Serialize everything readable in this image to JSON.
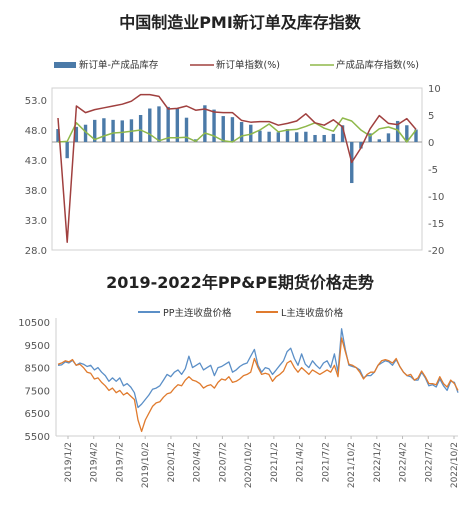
{
  "chart_data": [
    {
      "type": "bar+line",
      "title": "中国制造业PMI新订单及库存指数",
      "legend": [
        "新订单-产成品库存",
        "新订单指数(%)",
        "产成品库存指数(%)"
      ],
      "legend_position": "top",
      "left_ticks": [
        "53.0",
        "48.0",
        "43.0",
        "38.0",
        "33.0",
        "28.0"
      ],
      "right_ticks": [
        "10",
        "5",
        "0",
        "-5",
        "-10",
        "-15",
        "-20"
      ],
      "ylim_left": [
        28,
        55
      ],
      "ylim_right": [
        -20,
        10
      ],
      "colors": {
        "bar": "#4b7aa8",
        "new_orders": "#a0403f",
        "inventory": "#8fb84a"
      },
      "series": [
        {
          "name": "新订单-产成品库存",
          "axis": "right",
          "kind": "bar",
          "values": [
            2.4,
            -3.0,
            2.8,
            3.2,
            4.1,
            4.4,
            4.1,
            4.0,
            4.2,
            5.0,
            6.2,
            6.6,
            6.5,
            6.2,
            4.5,
            0.5,
            6.8,
            6.0,
            4.8,
            4.6,
            3.7,
            3.2,
            2.1,
            1.9,
            1.8,
            2.4,
            1.8,
            1.9,
            1.3,
            1.3,
            1.5,
            3.1,
            -7.6,
            -1.2,
            1.6,
            0.5,
            1.6,
            3.9,
            3.1,
            2.3
          ]
        },
        {
          "name": "新订单指数(%)",
          "axis": "left",
          "kind": "line",
          "values": [
            50.0,
            29.3,
            52.0,
            50.9,
            51.4,
            51.7,
            52.0,
            52.3,
            52.8,
            53.9,
            53.9,
            53.6,
            51.5,
            51.6,
            52.0,
            51.3,
            51.5,
            51.0,
            50.9,
            50.9,
            49.6,
            49.3,
            49.4,
            49.4,
            48.8,
            49.1,
            49.5,
            50.7,
            49.2,
            48.8,
            49.7,
            48.5,
            42.6,
            45.0,
            48.2,
            50.4,
            49.1,
            48.9,
            49.9,
            48.1
          ]
        },
        {
          "name": "产成品库存指数(%)",
          "axis": "left",
          "kind": "line",
          "values": [
            46.0,
            46.1,
            49.2,
            47.7,
            46.4,
            47.0,
            47.5,
            47.6,
            47.8,
            48.0,
            47.3,
            46.2,
            46.7,
            46.7,
            46.8,
            46.1,
            47.5,
            47.0,
            46.2,
            46.0,
            47.0,
            47.3,
            48.0,
            49.0,
            47.7,
            48.0,
            48.1,
            48.6,
            49.2,
            48.3,
            47.8,
            50.0,
            49.5,
            48.0,
            47.0,
            48.2,
            48.5,
            48.0,
            46.0,
            48.0
          ]
        }
      ]
    },
    {
      "type": "line",
      "title": "2019-2022年PP&PE期货价格走势",
      "legend": [
        "PP主连收盘价格",
        "L主连收盘价格"
      ],
      "legend_position": "top",
      "y_ticks": [
        "10500",
        "9500",
        "8500",
        "7500",
        "6500",
        "5500"
      ],
      "ylim": [
        5500,
        10500
      ],
      "x_ticks": [
        "2019/1/2",
        "2019/4/2",
        "2019/7/2",
        "2019/10/2",
        "2020/1/2",
        "2020/4/2",
        "2020/7/2",
        "2020/10/2",
        "2021/1/2",
        "2021/4/2",
        "2021/7/2",
        "2021/10/2",
        "2022/1/2",
        "2022/4/2",
        "2022/7/2",
        "2022/10/2"
      ],
      "colors": {
        "pp": "#5b8fc7",
        "l": "#e07b2e"
      },
      "series": [
        {
          "name": "PP主连收盘价格",
          "values": [
            8600,
            8620,
            8750,
            8700,
            8820,
            8600,
            8700,
            8650,
            8550,
            8600,
            8400,
            8500,
            8300,
            8150,
            7900,
            8050,
            7900,
            8050,
            7700,
            7800,
            7650,
            7400,
            6750,
            6900,
            7100,
            7300,
            7550,
            7600,
            7700,
            7950,
            8200,
            8100,
            8300,
            8400,
            8200,
            8450,
            9000,
            8500,
            8600,
            8700,
            8400,
            8500,
            8600,
            8150,
            8500,
            8550,
            8650,
            8750,
            8300,
            8400,
            8550,
            8650,
            8700,
            9000,
            9300,
            8600,
            8300,
            8500,
            8450,
            8200,
            8400,
            8600,
            8800,
            9200,
            9350,
            8900,
            8600,
            9100,
            8650,
            8500,
            8800,
            8600,
            8450,
            8700,
            8800,
            8500,
            9100,
            8300,
            10200,
            9300,
            8600,
            8550,
            8500,
            8400,
            8050,
            8150,
            8150,
            8300,
            8600,
            8700,
            8800,
            8750,
            8600,
            8850,
            8550,
            8300,
            8150,
            8100,
            7950,
            7950,
            8300,
            8050,
            7700,
            7750,
            7650,
            8000,
            7700,
            7500,
            7900,
            7850,
            7400
          ]
        },
        {
          "name": "L主连收盘价格",
          "values": [
            8650,
            8700,
            8800,
            8750,
            8850,
            8600,
            8650,
            8500,
            8300,
            8250,
            8000,
            8050,
            7850,
            7700,
            7500,
            7600,
            7400,
            7500,
            7300,
            7400,
            7250,
            7100,
            6200,
            5700,
            6200,
            6500,
            6800,
            6950,
            7000,
            7200,
            7350,
            7400,
            7600,
            7750,
            7700,
            7950,
            8100,
            7950,
            7900,
            7800,
            7600,
            7700,
            7750,
            7600,
            7850,
            8000,
            7950,
            8100,
            7850,
            7900,
            8000,
            8150,
            8200,
            8300,
            8900,
            8500,
            8200,
            8250,
            8200,
            7900,
            8100,
            8200,
            8350,
            8700,
            8800,
            8500,
            8300,
            8500,
            8350,
            8200,
            8400,
            8300,
            8200,
            8300,
            8400,
            8300,
            8600,
            8100,
            9800,
            9200,
            8650,
            8600,
            8500,
            8300,
            8000,
            8200,
            8300,
            8300,
            8600,
            8800,
            8850,
            8800,
            8700,
            8900,
            8550,
            8300,
            8150,
            8200,
            7950,
            8050,
            8350,
            8100,
            7800,
            7800,
            7750,
            8100,
            7800,
            7650,
            7950,
            7800,
            7500
          ]
        }
      ]
    }
  ]
}
